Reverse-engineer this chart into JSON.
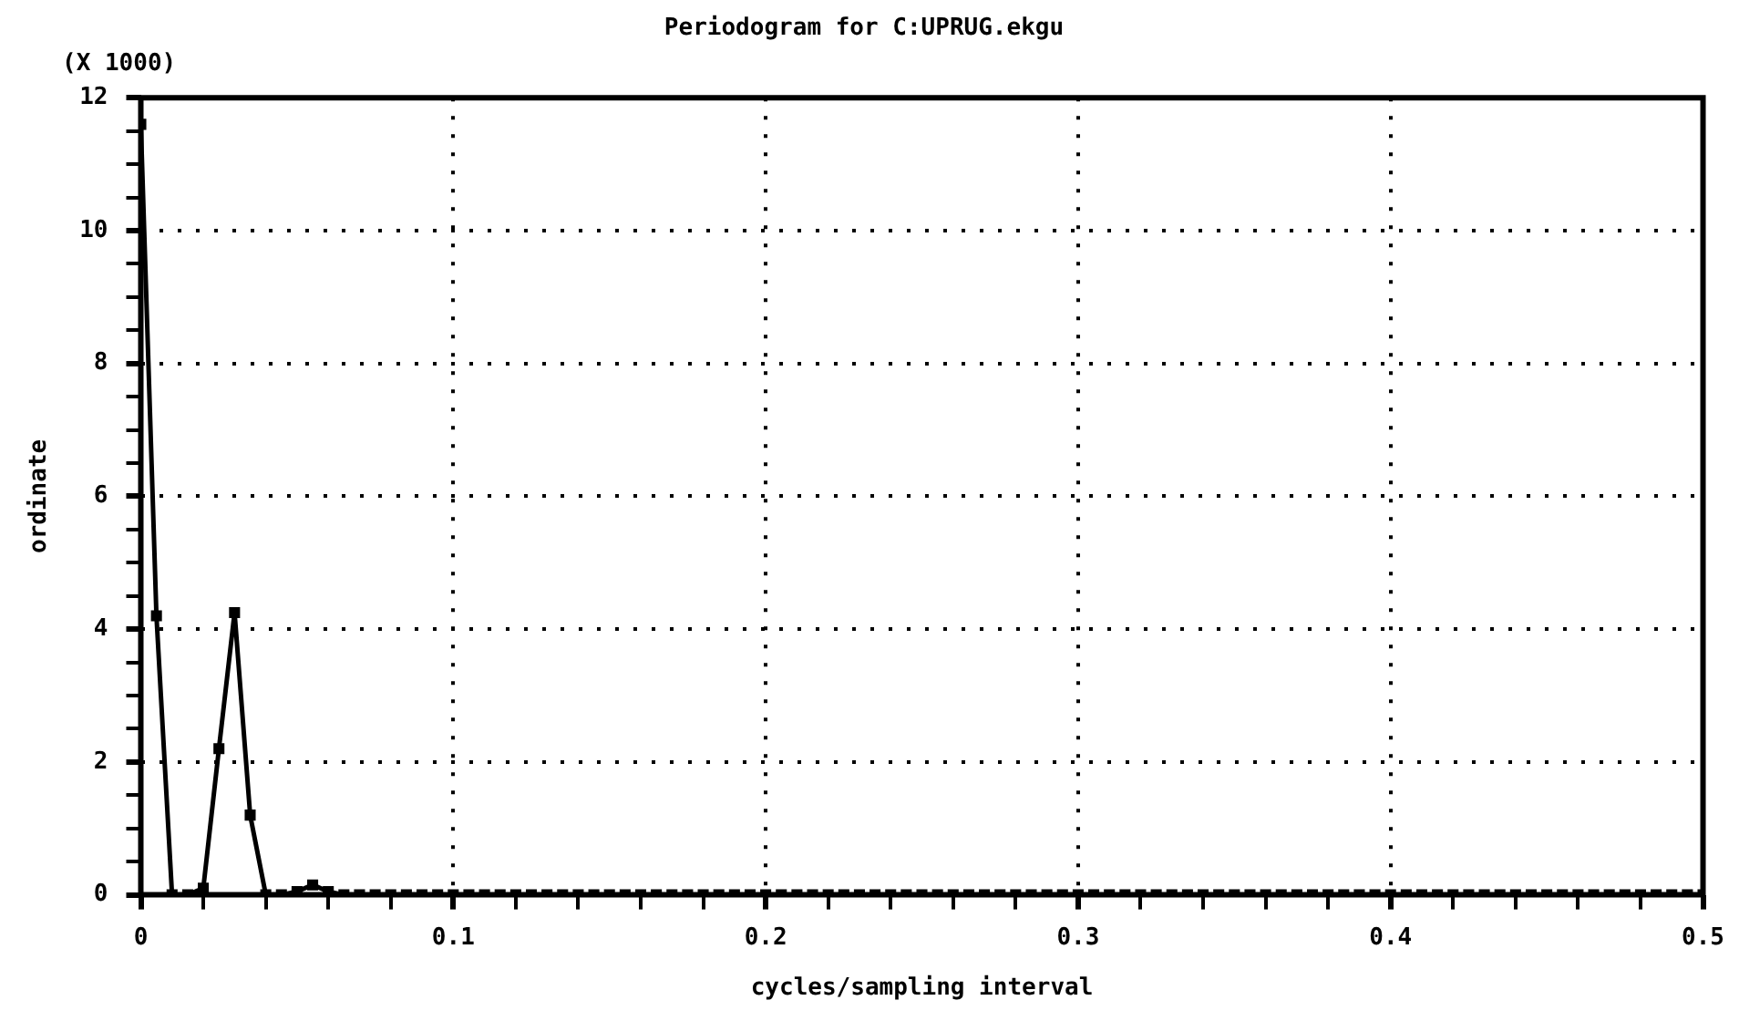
{
  "chart_data": {
    "type": "line",
    "title": "Periodogram for C:UPRUG.ekgu",
    "xlabel": "cycles/sampling interval",
    "ylabel": "ordinate",
    "annotations": [
      "(X 1000)"
    ],
    "x": [
      0,
      0.005,
      0.01,
      0.015,
      0.02,
      0.025,
      0.03,
      0.035,
      0.04,
      0.045,
      0.05,
      0.055,
      0.06,
      0.065,
      0.07,
      0.075,
      0.08,
      0.085,
      0.09,
      0.095,
      0.1,
      0.105,
      0.11,
      0.115,
      0.12,
      0.125,
      0.13,
      0.135,
      0.14,
      0.145,
      0.15,
      0.155,
      0.16,
      0.165,
      0.17,
      0.175,
      0.18,
      0.185,
      0.19,
      0.195,
      0.2,
      0.205,
      0.21,
      0.215,
      0.22,
      0.225,
      0.23,
      0.235,
      0.24,
      0.245,
      0.25,
      0.255,
      0.26,
      0.265,
      0.27,
      0.275,
      0.28,
      0.285,
      0.29,
      0.295,
      0.3,
      0.305,
      0.31,
      0.315,
      0.32,
      0.325,
      0.33,
      0.335,
      0.34,
      0.345,
      0.35,
      0.355,
      0.36,
      0.365,
      0.37,
      0.375,
      0.38,
      0.385,
      0.39,
      0.395,
      0.4,
      0.405,
      0.41,
      0.415,
      0.42,
      0.425,
      0.43,
      0.435,
      0.44,
      0.445,
      0.45,
      0.455,
      0.46,
      0.465,
      0.47,
      0.475,
      0.48,
      0.485,
      0.49,
      0.495,
      0.5
    ],
    "series": [
      {
        "color": "#000000",
        "values": [
          11.6,
          4.2,
          0,
          0,
          0.1,
          2.2,
          4.25,
          1.2,
          0,
          0,
          0.05,
          0.15,
          0.05,
          0,
          0,
          0,
          0,
          0,
          0,
          0,
          0,
          0,
          0,
          0,
          0,
          0,
          0,
          0,
          0,
          0,
          0,
          0,
          0,
          0,
          0,
          0,
          0,
          0,
          0,
          0,
          0,
          0,
          0,
          0,
          0,
          0,
          0,
          0,
          0,
          0,
          0,
          0,
          0,
          0,
          0,
          0,
          0,
          0,
          0,
          0,
          0,
          0,
          0,
          0,
          0,
          0,
          0,
          0,
          0,
          0,
          0,
          0,
          0,
          0,
          0,
          0,
          0,
          0,
          0,
          0,
          0,
          0,
          0,
          0,
          0,
          0,
          0,
          0,
          0,
          0,
          0,
          0,
          0,
          0,
          0,
          0,
          0,
          0,
          0,
          0,
          0
        ]
      }
    ],
    "xlim": [
      0,
      0.5
    ],
    "xticks": [
      0,
      {
        "value": 0.02,
        "label": null
      },
      {
        "value": 0.04,
        "label": null
      },
      {
        "value": 0.06,
        "label": null
      },
      {
        "value": 0.08,
        "label": null
      },
      0.1,
      {
        "value": 0.12,
        "label": null
      },
      {
        "value": 0.14,
        "label": null
      },
      {
        "value": 0.16,
        "label": null
      },
      {
        "value": 0.18,
        "label": null
      },
      0.2,
      {
        "value": 0.22,
        "label": null
      },
      {
        "value": 0.24,
        "label": null
      },
      {
        "value": 0.26,
        "label": null
      },
      {
        "value": 0.28,
        "label": null
      },
      0.3,
      {
        "value": 0.32,
        "label": null
      },
      {
        "value": 0.34,
        "label": null
      },
      {
        "value": 0.36,
        "label": null
      },
      {
        "value": 0.38,
        "label": null
      },
      0.4,
      {
        "value": 0.42,
        "label": null
      },
      {
        "value": 0.44,
        "label": null
      },
      {
        "value": 0.46,
        "label": null
      },
      {
        "value": 0.48,
        "label": null
      },
      0.5
    ],
    "ylim": [
      0,
      12
    ],
    "yticks": [
      0,
      {
        "value": 0.5,
        "label": null
      },
      {
        "value": 1,
        "label": null
      },
      {
        "value": 1.5,
        "label": null
      },
      2,
      {
        "value": 2.5,
        "label": null
      },
      {
        "value": 3,
        "label": null
      },
      {
        "value": 3.5,
        "label": null
      },
      4,
      {
        "value": 4.5,
        "label": null
      },
      {
        "value": 5,
        "label": null
      },
      {
        "value": 5.5,
        "label": null
      },
      6,
      {
        "value": 6.5,
        "label": null
      },
      {
        "value": 7,
        "label": null
      },
      {
        "value": 7.5,
        "label": null
      },
      8,
      {
        "value": 8.5,
        "label": null
      },
      {
        "value": 9,
        "label": null
      },
      {
        "value": 9.5,
        "label": null
      },
      10,
      {
        "value": 10.5,
        "label": null
      },
      {
        "value": 11,
        "label": null
      },
      {
        "value": 11.5,
        "label": null
      },
      12
    ],
    "grid": true,
    "legend": false,
    "marker": "square",
    "line_style": "solid"
  }
}
